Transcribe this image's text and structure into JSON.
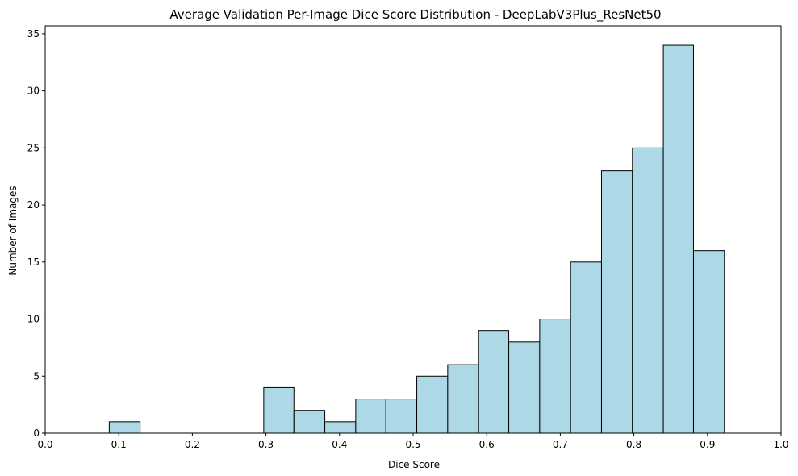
{
  "chart_data": {
    "type": "bar",
    "title": "Average Validation Per-Image Dice Score Distribution - DeepLabV3Plus_ResNet50",
    "xlabel": "Dice Score",
    "ylabel": "Number of Images",
    "xlim": [
      0.0,
      1.0
    ],
    "ylim": [
      0,
      35.7
    ],
    "x_ticks": [
      "0.0",
      "0.1",
      "0.2",
      "0.3",
      "0.4",
      "0.5",
      "0.6",
      "0.7",
      "0.8",
      "0.9",
      "1.0"
    ],
    "y_ticks": [
      "0",
      "5",
      "10",
      "15",
      "20",
      "25",
      "30",
      "35"
    ],
    "bin_edges": [
      0.087,
      0.129,
      0.171,
      0.213,
      0.255,
      0.297,
      0.338,
      0.38,
      0.422,
      0.463,
      0.505,
      0.547,
      0.589,
      0.63,
      0.672,
      0.714,
      0.756,
      0.798,
      0.84,
      0.881,
      0.923
    ],
    "values": [
      1,
      0,
      0,
      0,
      0,
      4,
      2,
      1,
      3,
      3,
      5,
      6,
      9,
      8,
      10,
      15,
      23,
      25,
      34,
      16
    ],
    "bar_color": "#add8e6",
    "edge_color": "#000000",
    "grid": false,
    "legend": "none"
  }
}
